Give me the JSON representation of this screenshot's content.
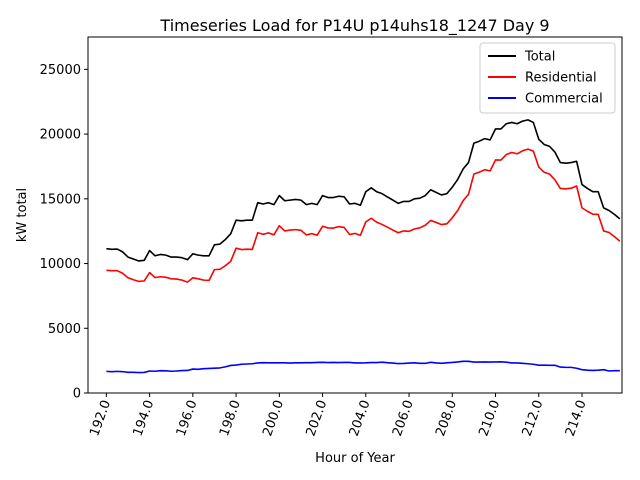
{
  "chart_data": {
    "type": "line",
    "title": "Timeseries Load for P14U p14uhs18_1247  Day 9",
    "xlabel": "Hour of Year",
    "ylabel": "kW total",
    "xlim": [
      191.15,
      215.85
    ],
    "ylim": [
      0,
      27500
    ],
    "xticks": [
      192,
      194,
      196,
      198,
      200,
      202,
      204,
      206,
      208,
      210,
      212,
      214
    ],
    "xtick_labels": [
      "192.0",
      "194.0",
      "196.0",
      "198.0",
      "200.0",
      "202.0",
      "204.0",
      "206.0",
      "208.0",
      "210.0",
      "212.0",
      "214.0"
    ],
    "yticks": [
      0,
      5000,
      10000,
      15000,
      20000,
      25000
    ],
    "ytick_labels": [
      "0",
      "5000",
      "10000",
      "15000",
      "20000",
      "25000"
    ],
    "legend_position": "top-right",
    "x": [
      192.0,
      192.25,
      192.5,
      192.75,
      193.0,
      193.25,
      193.5,
      193.75,
      194.0,
      194.25,
      194.5,
      194.75,
      195.0,
      195.25,
      195.5,
      195.75,
      196.0,
      196.25,
      196.5,
      196.75,
      197.0,
      197.25,
      197.5,
      197.75,
      198.0,
      198.25,
      198.5,
      198.75,
      199.0,
      199.25,
      199.5,
      199.75,
      200.0,
      200.25,
      200.5,
      200.75,
      201.0,
      201.25,
      201.5,
      201.75,
      202.0,
      202.25,
      202.5,
      202.75,
      203.0,
      203.25,
      203.5,
      203.75,
      204.0,
      204.25,
      204.5,
      204.75,
      205.0,
      205.25,
      205.5,
      205.75,
      206.0,
      206.25,
      206.5,
      206.75,
      207.0,
      207.25,
      207.5,
      207.75,
      208.0,
      208.25,
      208.5,
      208.75,
      209.0,
      209.25,
      209.5,
      209.75,
      210.0,
      210.25,
      210.5,
      210.75,
      211.0,
      211.25,
      211.5,
      211.75,
      212.0,
      212.25,
      212.5,
      212.75,
      213.0,
      213.25,
      213.5,
      213.75,
      214.0,
      214.25,
      214.5,
      214.75,
      215.0,
      215.25,
      215.5,
      215.75
    ],
    "series": [
      {
        "name": "Total",
        "color": "#000000",
        "values": [
          11150,
          11100,
          11120,
          10900,
          10500,
          10350,
          10200,
          10250,
          11000,
          10600,
          10700,
          10650,
          10500,
          10500,
          10450,
          10300,
          10750,
          10650,
          10600,
          10600,
          11450,
          11500,
          11850,
          12300,
          13350,
          13300,
          13350,
          13350,
          14700,
          14600,
          14700,
          14550,
          15250,
          14850,
          14900,
          14950,
          14900,
          14550,
          14650,
          14550,
          15250,
          15100,
          15100,
          15200,
          15150,
          14600,
          14650,
          14500,
          15550,
          15850,
          15550,
          15400,
          15150,
          14900,
          14650,
          14800,
          14800,
          15000,
          15050,
          15250,
          15700,
          15500,
          15300,
          15400,
          15900,
          16500,
          17300,
          17800,
          19300,
          19450,
          19650,
          19550,
          20400,
          20400,
          20800,
          20900,
          20800,
          21000,
          21100,
          20900,
          19600,
          19200,
          19050,
          18600,
          17800,
          17750,
          17800,
          17900,
          16100,
          15800,
          15550,
          15550,
          14300,
          14100,
          13800,
          13450
        ]
      },
      {
        "name": "Residential",
        "color": "#ff0000",
        "values": [
          9480,
          9450,
          9450,
          9250,
          8900,
          8750,
          8620,
          8660,
          9300,
          8920,
          8980,
          8940,
          8820,
          8800,
          8720,
          8560,
          8900,
          8820,
          8720,
          8700,
          9530,
          9560,
          9830,
          10170,
          11190,
          11080,
          11110,
          11090,
          12380,
          12260,
          12370,
          12220,
          12920,
          12520,
          12590,
          12620,
          12570,
          12210,
          12310,
          12190,
          12880,
          12750,
          12740,
          12850,
          12790,
          12240,
          12330,
          12180,
          13220,
          13500,
          13200,
          13020,
          12810,
          12590,
          12380,
          12520,
          12490,
          12670,
          12760,
          12960,
          13330,
          13180,
          13010,
          13070,
          13540,
          14100,
          14850,
          15350,
          16910,
          17060,
          17250,
          17160,
          18000,
          17990,
          18420,
          18580,
          18480,
          18710,
          18840,
          18680,
          17450,
          17050,
          16910,
          16460,
          15800,
          15770,
          15820,
          15990,
          14300,
          14040,
          13810,
          13790,
          12520,
          12400,
          12080,
          11730
        ]
      },
      {
        "name": "Commercial",
        "color": "#0000ff",
        "values": [
          1670,
          1650,
          1670,
          1650,
          1600,
          1600,
          1580,
          1590,
          1700,
          1680,
          1720,
          1710,
          1680,
          1700,
          1730,
          1740,
          1850,
          1830,
          1880,
          1900,
          1920,
          1940,
          2020,
          2130,
          2160,
          2220,
          2240,
          2260,
          2320,
          2340,
          2330,
          2330,
          2330,
          2330,
          2310,
          2330,
          2330,
          2340,
          2340,
          2360,
          2370,
          2350,
          2360,
          2350,
          2360,
          2360,
          2320,
          2320,
          2330,
          2350,
          2350,
          2380,
          2340,
          2310,
          2270,
          2280,
          2310,
          2330,
          2290,
          2290,
          2370,
          2320,
          2290,
          2330,
          2360,
          2400,
          2450,
          2450,
          2390,
          2390,
          2400,
          2390,
          2400,
          2410,
          2380,
          2320,
          2320,
          2290,
          2260,
          2220,
          2150,
          2150,
          2140,
          2140,
          2000,
          1980,
          1980,
          1910,
          1800,
          1760,
          1740,
          1760,
          1800,
          1700,
          1720,
          1720
        ]
      }
    ]
  }
}
